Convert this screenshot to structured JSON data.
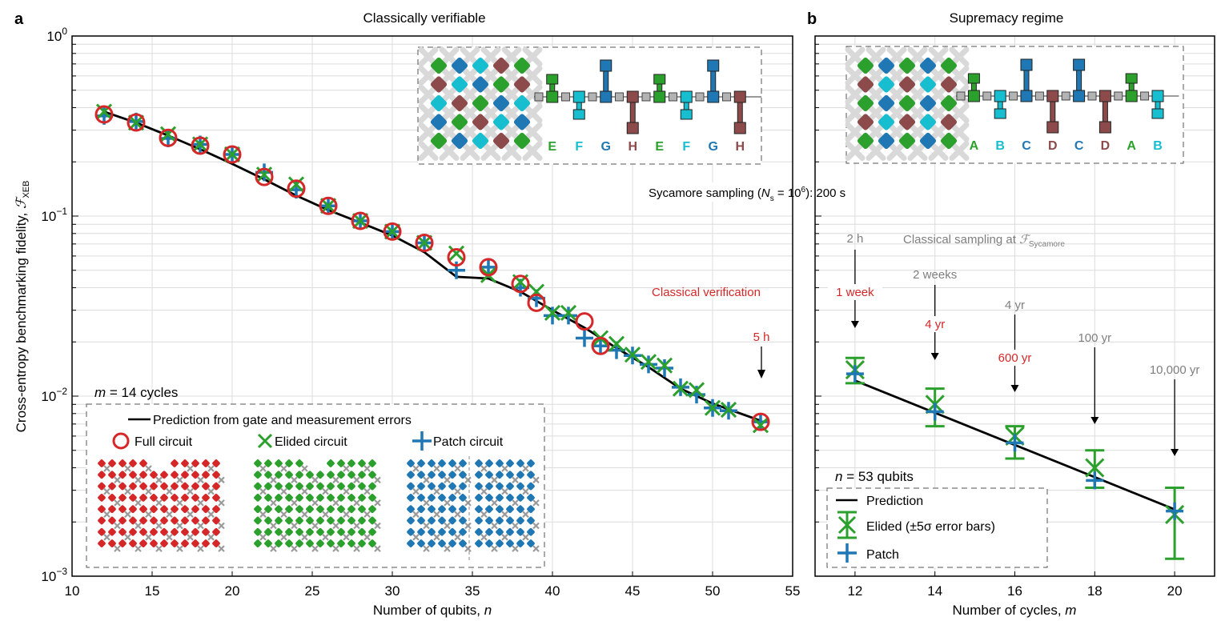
{
  "chart_data": [
    {
      "panel_label": "a",
      "type": "scatter",
      "title": "Classically verifiable",
      "xlabel": "Number of qubits, ",
      "xlabel_var": "n",
      "ylabel": "Cross-entropy benchmarking fidelity, ",
      "ylabel_symbol": "ℱ",
      "ylabel_sub": "XEB",
      "xlim": [
        10,
        55
      ],
      "ylim": [
        0.001,
        1
      ],
      "yscale": "log",
      "grid": true,
      "xticks": [
        10,
        15,
        20,
        25,
        30,
        35,
        40,
        45,
        50,
        55
      ],
      "xtick_labels": [
        "10",
        "15",
        "20",
        "25",
        "30",
        "35",
        "40",
        "45",
        "50",
        "55"
      ],
      "yticks": [
        {
          "value": 0.001,
          "base": "10",
          "exp": "−3"
        },
        {
          "value": 0.01,
          "base": "10",
          "exp": "−2"
        },
        {
          "value": 0.1,
          "base": "10",
          "exp": "−1"
        },
        {
          "value": 1,
          "base": "10",
          "exp": "0"
        }
      ],
      "series": [
        {
          "name": "Prediction from gate and measurement errors",
          "kind": "line",
          "color": "#000000",
          "x": [
            12,
            14,
            16,
            18,
            20,
            22,
            24,
            26,
            28,
            30,
            32,
            34,
            36,
            38,
            40,
            42,
            44,
            46,
            48,
            50,
            53
          ],
          "y": [
            0.38,
            0.33,
            0.28,
            0.235,
            0.195,
            0.16,
            0.13,
            0.108,
            0.092,
            0.078,
            0.063,
            0.046,
            0.045,
            0.038,
            0.03,
            0.024,
            0.0185,
            0.0145,
            0.011,
            0.0091,
            0.0073
          ]
        },
        {
          "name": "Full circuit",
          "kind": "circle",
          "color": "#d62728",
          "x": [
            12,
            14,
            16,
            18,
            20,
            22,
            24,
            26,
            28,
            30,
            32,
            34,
            36,
            38,
            39,
            42,
            43,
            53
          ],
          "y": [
            0.367,
            0.331,
            0.272,
            0.246,
            0.22,
            0.165,
            0.142,
            0.114,
            0.094,
            0.082,
            0.071,
            0.059,
            0.052,
            0.042,
            0.033,
            0.026,
            0.019,
            0.0072
          ]
        },
        {
          "name": "Elided circuit",
          "kind": "x",
          "color": "#2ca02c",
          "x": [
            12,
            14,
            16,
            18,
            20,
            22,
            24,
            26,
            28,
            30,
            32,
            34,
            36,
            38,
            39,
            40,
            41,
            43,
            44,
            45,
            46,
            47,
            48,
            49,
            50,
            51,
            53
          ],
          "y": [
            0.38,
            0.33,
            0.285,
            0.25,
            0.22,
            0.17,
            0.15,
            0.114,
            0.094,
            0.082,
            0.071,
            0.062,
            0.047,
            0.043,
            0.038,
            0.029,
            0.029,
            0.021,
            0.0195,
            0.017,
            0.0155,
            0.0148,
            0.011,
            0.0108,
            0.0086,
            0.0084,
            0.0069
          ]
        },
        {
          "name": "Patch circuit",
          "kind": "plus",
          "color": "#1f77b4",
          "x": [
            12,
            14,
            16,
            18,
            20,
            22,
            24,
            26,
            28,
            30,
            32,
            34,
            36,
            38,
            39,
            40,
            41,
            42,
            43,
            44,
            45,
            46,
            47,
            48,
            49,
            50,
            51,
            53
          ],
          "y": [
            0.36,
            0.335,
            0.27,
            0.25,
            0.22,
            0.175,
            0.14,
            0.114,
            0.094,
            0.082,
            0.071,
            0.05,
            0.052,
            0.04,
            0.035,
            0.028,
            0.028,
            0.021,
            0.019,
            0.018,
            0.0168,
            0.015,
            0.0143,
            0.0112,
            0.0102,
            0.0086,
            0.0083,
            0.0072
          ]
        }
      ],
      "annotations": {
        "cycles_label": "m",
        "cycles_text": " = 14 cycles",
        "classical_verification": "Classical verification",
        "verification_time": "5 h",
        "sycamore_prefix": "Sycamore sampling (",
        "sycamore_N": "N",
        "sycamore_sub": "s",
        "sycamore_eq": " = 10",
        "sycamore_exp": "6",
        "sycamore_suffix": "): 200 s"
      },
      "legend": {
        "placement": "bottom-left",
        "entries": [
          "Prediction from gate and measurement errors",
          "Full circuit",
          "Elided circuit",
          "Patch circuit"
        ]
      },
      "inset_pattern_labels": [
        "E",
        "F",
        "G",
        "H",
        "E",
        "F",
        "G",
        "H"
      ]
    },
    {
      "panel_label": "b",
      "type": "scatter",
      "title": "Supremacy regime",
      "xlabel": "Number of cycles, ",
      "xlabel_var": "m",
      "xlim": [
        11,
        21
      ],
      "ylim": [
        0.001,
        1
      ],
      "yscale": "log",
      "grid": true,
      "xticks": [
        12,
        14,
        16,
        18,
        20
      ],
      "xtick_labels": [
        "12",
        "14",
        "16",
        "18",
        "20"
      ],
      "series": [
        {
          "name": "Prediction",
          "kind": "line",
          "color": "#000000",
          "x": [
            12,
            20
          ],
          "y": [
            0.0122,
            0.00235
          ]
        },
        {
          "name": "Elided (±5σ error bars)",
          "kind": "x-errorbar",
          "color": "#2ca02c",
          "x": [
            12,
            14,
            16,
            18,
            20
          ],
          "y": [
            0.014,
            0.009,
            0.006,
            0.004,
            0.0022
          ],
          "yerr_low": [
            0.0118,
            0.0068,
            0.0045,
            0.0031,
            0.00125
          ],
          "yerr_high": [
            0.0163,
            0.011,
            0.0068,
            0.005,
            0.0031
          ]
        },
        {
          "name": "Patch",
          "kind": "plus",
          "color": "#1f77b4",
          "x": [
            12,
            14,
            16,
            18,
            20
          ],
          "y": [
            0.0133,
            0.0082,
            0.0055,
            0.0034,
            0.0023
          ]
        }
      ],
      "annotations": {
        "qubits_label": "n",
        "qubits_text": " = 53 qubits",
        "classical_sampling_prefix": "Classical sampling at ",
        "classical_sampling_symbol": "ℱ",
        "classical_sampling_sub": "Sycamore",
        "times": [
          {
            "m": 12,
            "gray": "2 h",
            "red": "1 week"
          },
          {
            "m": 14,
            "gray": "2 weeks",
            "red": "4 yr"
          },
          {
            "m": 16,
            "gray": "4 yr",
            "red": "600 yr"
          },
          {
            "m": 18,
            "gray": "100 yr",
            "red": ""
          },
          {
            "m": 20,
            "gray": "10,000 yr",
            "red": ""
          }
        ]
      },
      "legend": {
        "placement": "bottom-left",
        "entries": [
          "Prediction",
          "Elided (±5σ error bars)",
          "Patch"
        ]
      },
      "inset_pattern_labels": [
        "A",
        "B",
        "C",
        "D",
        "C",
        "D",
        "A",
        "B"
      ]
    }
  ],
  "colors": {
    "green": "#2ca02c",
    "cyan": "#17becf",
    "blue": "#1f77b4",
    "maroon": "#8c4a4a",
    "red": "#d62728",
    "gray_text": "#7f7f7f"
  }
}
